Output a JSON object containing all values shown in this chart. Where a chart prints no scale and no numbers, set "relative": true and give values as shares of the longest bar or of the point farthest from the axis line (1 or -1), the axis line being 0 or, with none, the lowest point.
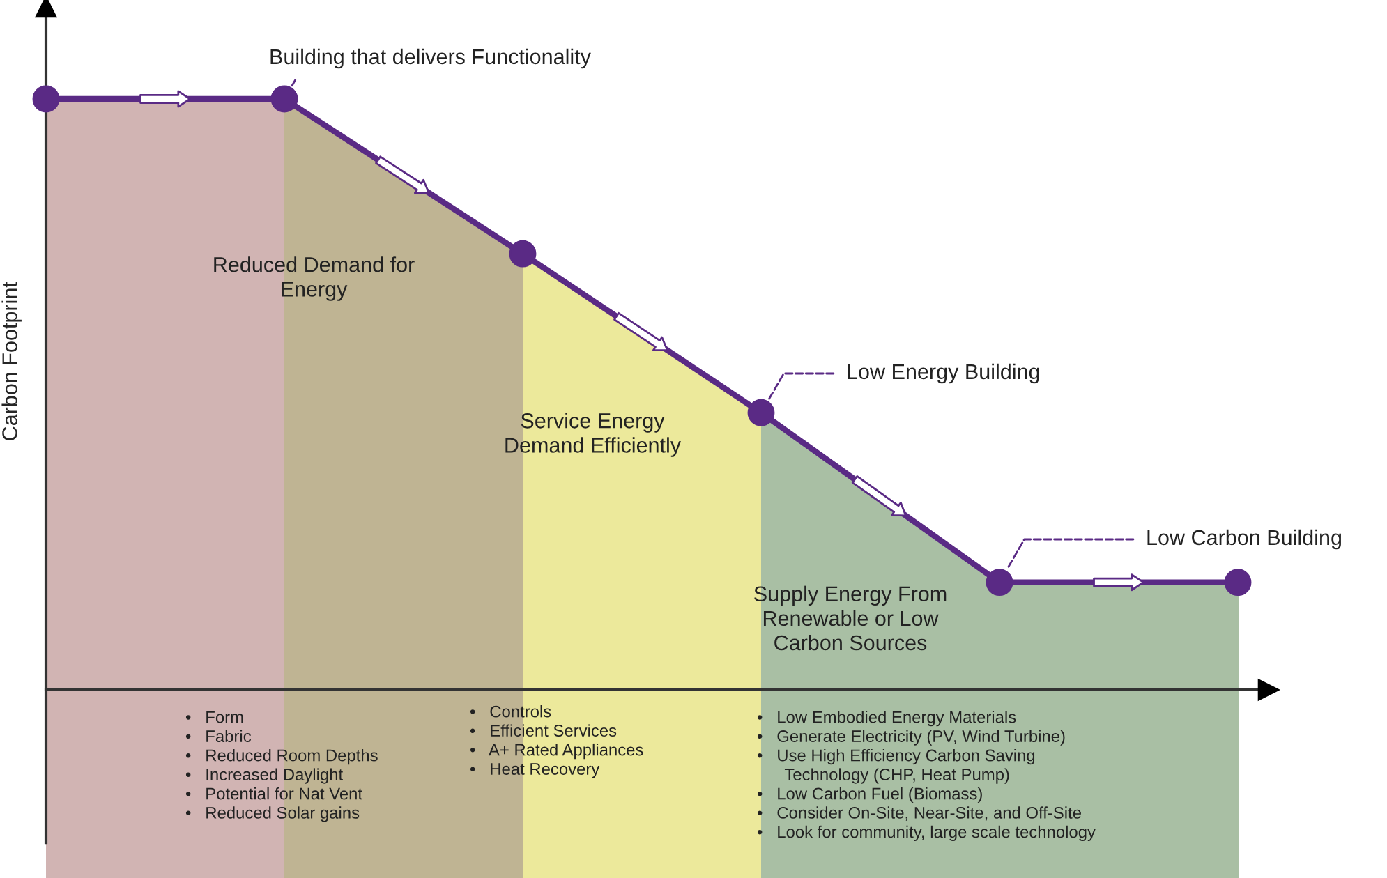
{
  "chart_data": {
    "type": "line",
    "relative": true,
    "ylabel": "Carbon Footprint",
    "categories": [
      null,
      null,
      null,
      null,
      null,
      null
    ],
    "series": [
      {
        "color": "#5a2a85",
        "colors": [
          "#d1b4b3",
          "#bfb493",
          "#ece99b",
          "#a9bfa4",
          "#a9bfa4",
          "#a9bfa4"
        ],
        "values": [
          1,
          1,
          0.738,
          0.469,
          0.182,
          0.182
        ]
      }
    ],
    "marker": "circle",
    "line_style": "solid",
    "annotations": [
      "Building that delivers Functionality",
      "Low Energy Building",
      "Low Carbon Building",
      "Reduced Demand for\nEnergy",
      "Service Energy\nDemand Efficiently",
      "Supply Energy From\nRenewable or Low\nCarbon Sources",
      "•   Form\n•   Fabric\n•   Reduced Room Depths\n•   Increased Daylight\n•   Potential for Nat Vent\n•   Reduced Solar gains",
      "•   Controls\n•   Efficient Services\n•   A+ Rated Appliances\n•   Heat Recovery",
      "•   Low Embodied Energy Materials\n•   Generate Electricity (PV, Wind Turbine)\n•   Use High Efficiency Carbon Saving\n      Technology (CHP, Heat Pump)\n•   Low Carbon Fuel (Biomass)\n•   Consider On-Site, Near-Site, and Off-Site\n•   Look for community, large scale technology"
    ]
  }
}
